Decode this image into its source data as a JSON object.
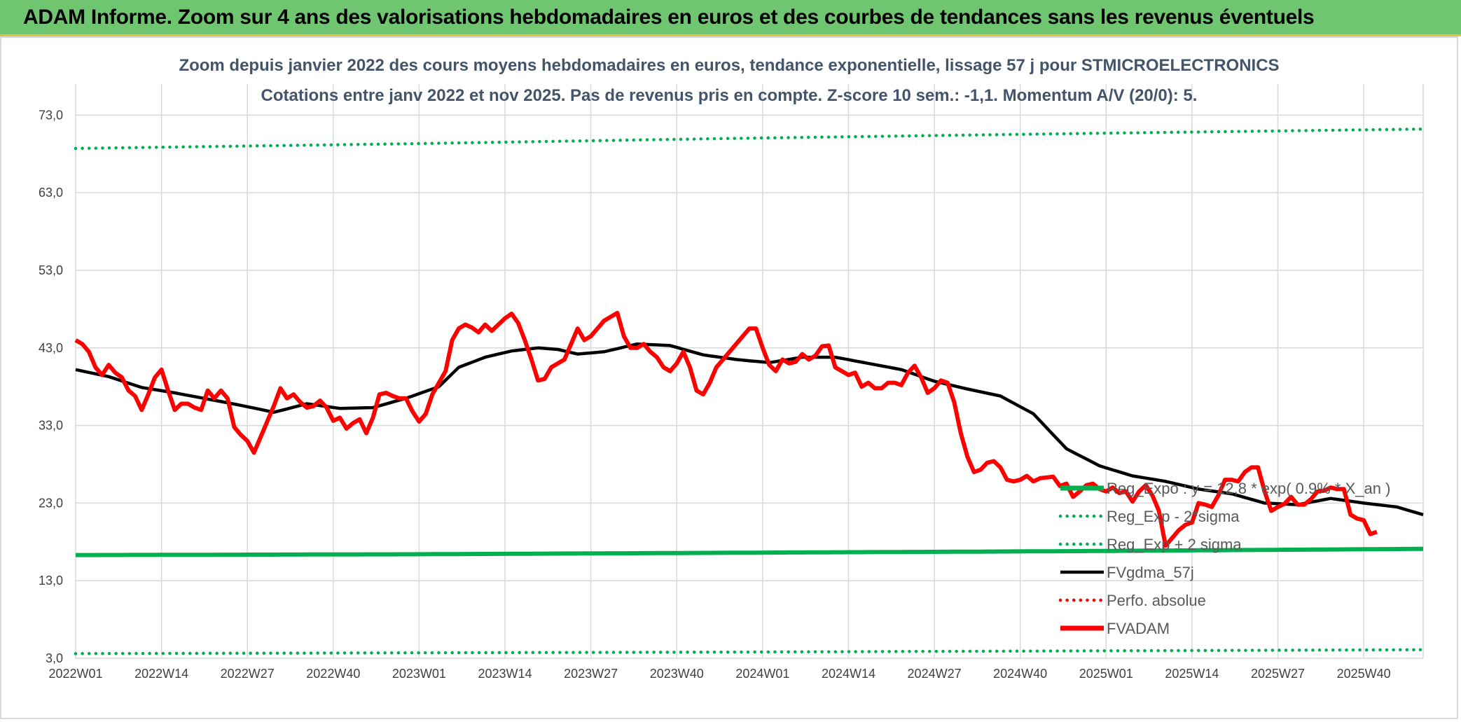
{
  "header": {
    "title": "ADAM Informe. Zoom sur 4 ans des valorisations hebdomadaires en euros et des courbes de tendances sans les revenus éventuels"
  },
  "colors": {
    "header_bg": "#70c670",
    "reg_expo": "#00b050",
    "fvgdma": "#000000",
    "fvadam": "#ff0000",
    "perfo": "#ff0000",
    "grid": "#d9d9d9"
  },
  "chart_data": {
    "type": "line",
    "title": "Zoom depuis janvier 2022 des cours moyens hebdomadaires en euros, tendance exponentielle, lissage 57 j pour STMICROELECTRONICS",
    "subtitle": "Cotations entre janv 2022 et nov 2025. Pas de revenus pris en compte. Z-score 10 sem.: -1,1. Momentum A/V (20/0): 5.",
    "xlabel": "",
    "ylabel": "",
    "ylim": [
      3,
      77
    ],
    "y_ticks": [
      "3,0",
      "13,0",
      "23,0",
      "33,0",
      "43,0",
      "53,0",
      "63,0",
      "73,0"
    ],
    "y_tick_values": [
      3,
      13,
      23,
      33,
      43,
      53,
      63,
      73
    ],
    "x_labels": [
      "2022W01",
      "2022W14",
      "2022W27",
      "2022W40",
      "2023W01",
      "2023W14",
      "2023W27",
      "2023W40",
      "2024W01",
      "2024W14",
      "2024W27",
      "2024W40",
      "2025W01",
      "2025W14",
      "2025W27",
      "2025W40"
    ],
    "x_label_every": 13,
    "n_weeks": 205,
    "series": [
      {
        "name": "Reg_Expo : y = 12,8 * exp( 0.9% *  X_an )",
        "style": "solid-thick",
        "color": "#00b050",
        "kp": [
          [
            0,
            16.3
          ],
          [
            50,
            16.4
          ],
          [
            100,
            16.6
          ],
          [
            150,
            16.8
          ],
          [
            204,
            17.1
          ]
        ]
      },
      {
        "name": "Reg_Exp - 2*sigma",
        "style": "dotted",
        "color": "#00b050",
        "kp": [
          [
            0,
            3.6
          ],
          [
            100,
            3.8
          ],
          [
            204,
            4.1
          ]
        ]
      },
      {
        "name": "Reg_Exp + 2 sigma",
        "style": "dotted",
        "color": "#00b050",
        "kp": [
          [
            0,
            68.7
          ],
          [
            50,
            69.3
          ],
          [
            100,
            70.0
          ],
          [
            150,
            70.6
          ],
          [
            204,
            71.2
          ]
        ]
      },
      {
        "name": "FVgdma_57j",
        "style": "solid",
        "color": "#000000",
        "kp": [
          [
            0,
            40.2
          ],
          [
            5,
            39.3
          ],
          [
            10,
            37.9
          ],
          [
            15,
            37.2
          ],
          [
            20,
            36.4
          ],
          [
            25,
            35.6
          ],
          [
            30,
            34.7
          ],
          [
            35,
            35.8
          ],
          [
            40,
            35.2
          ],
          [
            45,
            35.3
          ],
          [
            50,
            36.5
          ],
          [
            55,
            38.0
          ],
          [
            58,
            40.5
          ],
          [
            62,
            41.8
          ],
          [
            66,
            42.6
          ],
          [
            70,
            43.0
          ],
          [
            73,
            42.8
          ],
          [
            76,
            42.2
          ],
          [
            80,
            42.5
          ],
          [
            85,
            43.5
          ],
          [
            90,
            43.3
          ],
          [
            95,
            42.1
          ],
          [
            100,
            41.5
          ],
          [
            105,
            41.1
          ],
          [
            110,
            41.8
          ],
          [
            115,
            41.8
          ],
          [
            120,
            41.0
          ],
          [
            125,
            40.2
          ],
          [
            130,
            38.7
          ],
          [
            135,
            37.7
          ],
          [
            140,
            36.8
          ],
          [
            145,
            34.5
          ],
          [
            150,
            30.0
          ],
          [
            155,
            27.8
          ],
          [
            160,
            26.5
          ],
          [
            165,
            25.8
          ],
          [
            170,
            24.8
          ],
          [
            175,
            24.2
          ],
          [
            180,
            23.0
          ],
          [
            185,
            22.8
          ],
          [
            190,
            23.6
          ],
          [
            195,
            23.0
          ],
          [
            200,
            22.5
          ],
          [
            204,
            21.5
          ]
        ]
      },
      {
        "name": "Perfo. absolue",
        "style": "dotted",
        "color": "#ff0000",
        "kp": []
      },
      {
        "name": "FVADAM",
        "style": "solid-thick",
        "color": "#ff0000",
        "kp": [
          [
            0,
            44.0
          ],
          [
            1,
            43.5
          ],
          [
            2,
            42.5
          ],
          [
            3,
            40.5
          ],
          [
            4,
            39.5
          ],
          [
            5,
            40.8
          ],
          [
            6,
            39.8
          ],
          [
            7,
            39.2
          ],
          [
            8,
            37.5
          ],
          [
            9,
            36.8
          ],
          [
            10,
            35.0
          ],
          [
            11,
            37.0
          ],
          [
            12,
            39.2
          ],
          [
            13,
            40.2
          ],
          [
            14,
            37.5
          ],
          [
            15,
            35.0
          ],
          [
            16,
            35.8
          ],
          [
            17,
            35.8
          ],
          [
            18,
            35.3
          ],
          [
            19,
            35.0
          ],
          [
            20,
            37.5
          ],
          [
            21,
            36.5
          ],
          [
            22,
            37.5
          ],
          [
            23,
            36.5
          ],
          [
            24,
            32.8
          ],
          [
            25,
            31.8
          ],
          [
            26,
            31.0
          ],
          [
            27,
            29.5
          ],
          [
            28,
            31.5
          ],
          [
            29,
            33.5
          ],
          [
            30,
            35.5
          ],
          [
            31,
            37.8
          ],
          [
            32,
            36.5
          ],
          [
            33,
            37.0
          ],
          [
            34,
            36.0
          ],
          [
            35,
            35.3
          ],
          [
            36,
            35.5
          ],
          [
            37,
            36.2
          ],
          [
            38,
            35.3
          ],
          [
            39,
            33.6
          ],
          [
            40,
            34.0
          ],
          [
            41,
            32.6
          ],
          [
            42,
            33.3
          ],
          [
            43,
            33.8
          ],
          [
            44,
            32.0
          ],
          [
            45,
            34.0
          ],
          [
            46,
            37.0
          ],
          [
            47,
            37.2
          ],
          [
            48,
            36.8
          ],
          [
            49,
            36.5
          ],
          [
            50,
            36.5
          ],
          [
            51,
            34.8
          ],
          [
            52,
            33.5
          ],
          [
            53,
            34.5
          ],
          [
            54,
            37.0
          ],
          [
            55,
            38.5
          ],
          [
            56,
            40.0
          ],
          [
            57,
            44.0
          ],
          [
            58,
            45.5
          ],
          [
            59,
            46.0
          ],
          [
            60,
            45.6
          ],
          [
            61,
            45.0
          ],
          [
            62,
            46.0
          ],
          [
            63,
            45.2
          ],
          [
            64,
            46.0
          ],
          [
            65,
            46.8
          ],
          [
            66,
            47.4
          ],
          [
            67,
            46.2
          ],
          [
            68,
            44.0
          ],
          [
            69,
            41.5
          ],
          [
            70,
            38.8
          ],
          [
            71,
            39.0
          ],
          [
            72,
            40.5
          ],
          [
            73,
            41.0
          ],
          [
            74,
            41.5
          ],
          [
            75,
            43.5
          ],
          [
            76,
            45.5
          ],
          [
            77,
            44.0
          ],
          [
            78,
            44.5
          ],
          [
            79,
            45.5
          ],
          [
            80,
            46.5
          ],
          [
            81,
            47.0
          ],
          [
            82,
            47.5
          ],
          [
            83,
            44.5
          ],
          [
            84,
            43.0
          ],
          [
            85,
            43.0
          ],
          [
            86,
            43.5
          ],
          [
            87,
            42.5
          ],
          [
            88,
            41.8
          ],
          [
            89,
            40.5
          ],
          [
            90,
            40.0
          ],
          [
            91,
            41.0
          ],
          [
            92,
            42.5
          ],
          [
            93,
            40.5
          ],
          [
            94,
            37.5
          ],
          [
            95,
            37.0
          ],
          [
            96,
            38.5
          ],
          [
            97,
            40.5
          ],
          [
            98,
            41.5
          ],
          [
            99,
            42.5
          ],
          [
            100,
            43.5
          ],
          [
            101,
            44.5
          ],
          [
            102,
            45.5
          ],
          [
            103,
            45.5
          ],
          [
            104,
            43.0
          ],
          [
            105,
            40.8
          ],
          [
            106,
            40.0
          ],
          [
            107,
            41.5
          ],
          [
            108,
            41.0
          ],
          [
            109,
            41.2
          ],
          [
            110,
            42.2
          ],
          [
            111,
            41.5
          ],
          [
            112,
            42.0
          ],
          [
            113,
            43.2
          ],
          [
            114,
            43.3
          ],
          [
            115,
            40.5
          ],
          [
            116,
            40.0
          ],
          [
            117,
            39.5
          ],
          [
            118,
            39.8
          ],
          [
            119,
            38.0
          ],
          [
            120,
            38.5
          ],
          [
            121,
            37.8
          ],
          [
            122,
            37.8
          ],
          [
            123,
            38.5
          ],
          [
            124,
            38.5
          ],
          [
            125,
            38.2
          ],
          [
            126,
            39.8
          ],
          [
            127,
            40.7
          ],
          [
            128,
            39.2
          ],
          [
            129,
            37.2
          ],
          [
            130,
            37.8
          ],
          [
            131,
            38.8
          ],
          [
            132,
            38.5
          ],
          [
            133,
            36.0
          ],
          [
            134,
            32.0
          ],
          [
            135,
            29.0
          ],
          [
            136,
            27.0
          ],
          [
            137,
            27.3
          ],
          [
            138,
            28.2
          ],
          [
            139,
            28.4
          ],
          [
            140,
            27.6
          ],
          [
            141,
            26.0
          ],
          [
            142,
            25.8
          ],
          [
            143,
            26.0
          ],
          [
            144,
            26.5
          ],
          [
            145,
            25.8
          ],
          [
            146,
            26.2
          ],
          [
            147,
            26.3
          ],
          [
            148,
            26.4
          ],
          [
            149,
            25.2
          ],
          [
            150,
            25.5
          ],
          [
            151,
            23.8
          ],
          [
            152,
            24.5
          ],
          [
            153,
            25.3
          ],
          [
            154,
            25.5
          ],
          [
            155,
            24.8
          ],
          [
            156,
            24.5
          ],
          [
            157,
            25.0
          ],
          [
            158,
            24.3
          ],
          [
            159,
            24.5
          ],
          [
            160,
            23.2
          ],
          [
            161,
            24.5
          ],
          [
            162,
            25.3
          ],
          [
            163,
            24.0
          ],
          [
            164,
            22.0
          ],
          [
            165,
            17.5
          ],
          [
            166,
            18.5
          ],
          [
            167,
            19.5
          ],
          [
            168,
            20.2
          ],
          [
            169,
            20.5
          ],
          [
            170,
            23.0
          ],
          [
            171,
            22.8
          ],
          [
            172,
            22.5
          ],
          [
            173,
            24.0
          ],
          [
            174,
            26.0
          ],
          [
            175,
            26.0
          ],
          [
            176,
            25.8
          ],
          [
            177,
            27.0
          ],
          [
            178,
            27.6
          ],
          [
            179,
            27.6
          ],
          [
            180,
            24.5
          ],
          [
            181,
            22.0
          ],
          [
            182,
            22.5
          ],
          [
            183,
            22.9
          ],
          [
            184,
            23.8
          ],
          [
            185,
            22.8
          ],
          [
            186,
            22.8
          ],
          [
            187,
            23.5
          ],
          [
            188,
            24.5
          ],
          [
            189,
            24.6
          ],
          [
            190,
            25.0
          ],
          [
            191,
            24.8
          ],
          [
            192,
            24.8
          ],
          [
            193,
            21.5
          ],
          [
            194,
            21.0
          ],
          [
            195,
            20.8
          ],
          [
            196,
            19.0
          ],
          [
            197,
            19.3
          ]
        ]
      }
    ],
    "legend_position": "right-inside"
  }
}
